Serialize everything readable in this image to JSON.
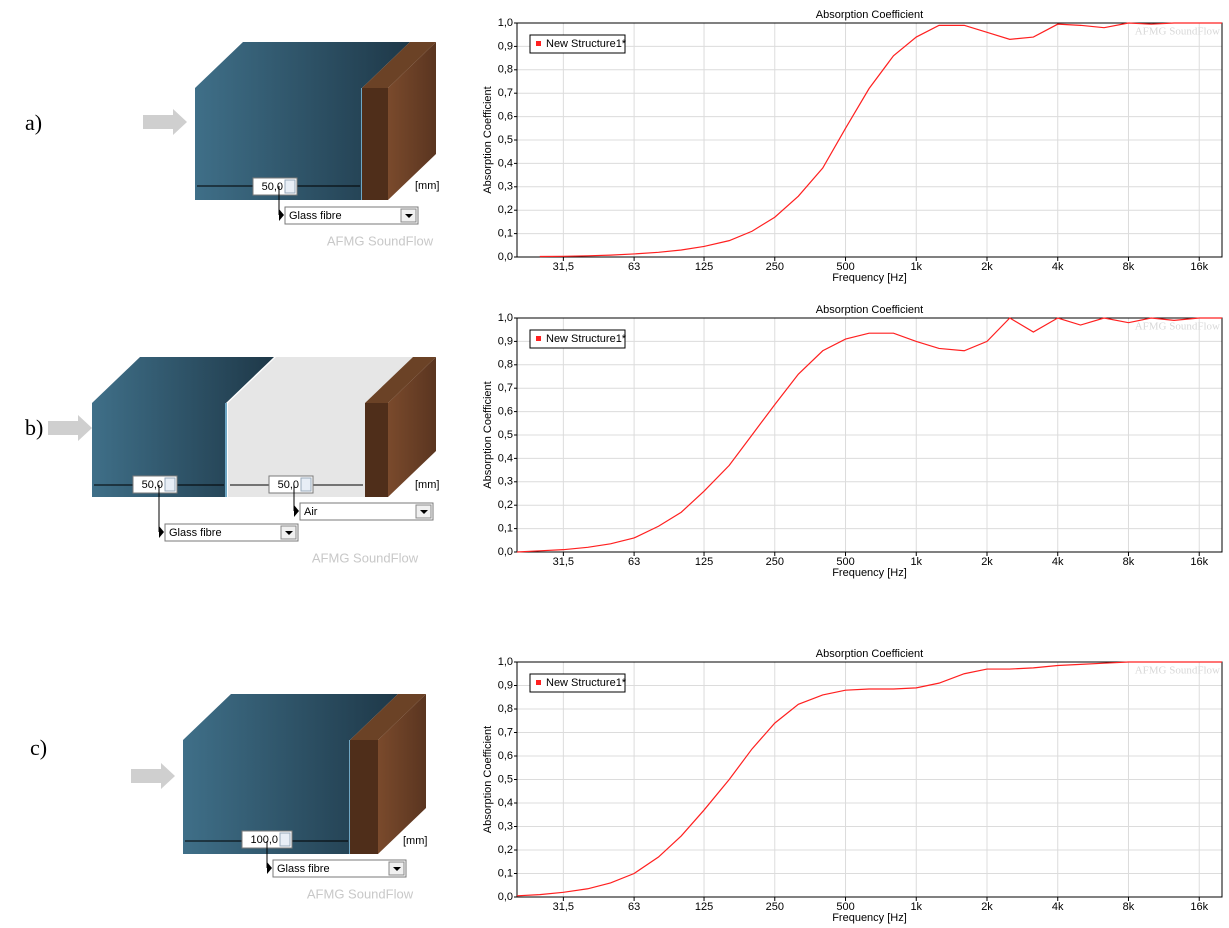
{
  "panels": [
    {
      "label": "a)",
      "inputs": [
        "50,0"
      ],
      "materials": [
        "Glass fibre"
      ],
      "unit": "[mm]",
      "watermark": "AFMG SoundFlow"
    },
    {
      "label": "b)",
      "inputs": [
        "50,0",
        "50,0"
      ],
      "materials": [
        "Glass fibre",
        "Air"
      ],
      "unit": "[mm]",
      "watermark": "AFMG SoundFlow"
    },
    {
      "label": "c)",
      "inputs": [
        "100,0"
      ],
      "materials": [
        "Glass fibre"
      ],
      "unit": "[mm]",
      "watermark": "AFMG SoundFlow"
    }
  ],
  "chart_data": [
    {
      "type": "line",
      "title": "Absorption Coefficient",
      "xlabel": "Frequency [Hz]",
      "ylabel": "Absorption Coefficient",
      "watermark": "AFMG SoundFlow",
      "x": [
        25,
        31.5,
        40,
        50,
        63,
        80,
        100,
        125,
        160,
        200,
        250,
        315,
        400,
        500,
        630,
        800,
        1000,
        1250,
        1600,
        2000,
        2500,
        3150,
        4000,
        5000,
        6300,
        8000,
        10000,
        12500,
        16000,
        20000
      ],
      "series": [
        {
          "name": "New Structure1*",
          "color": "#ff2020",
          "values": [
            0.002,
            0.003,
            0.005,
            0.008,
            0.013,
            0.02,
            0.03,
            0.045,
            0.07,
            0.11,
            0.17,
            0.26,
            0.38,
            0.55,
            0.72,
            0.86,
            0.94,
            0.99,
            0.99,
            0.96,
            0.93,
            0.94,
            0.995,
            0.99,
            0.98,
            1.0,
            0.995,
            1.0,
            1.0,
            1.0
          ]
        }
      ],
      "xscale": "log",
      "xlim": [
        20,
        20000
      ],
      "xticks": [
        {
          "value": 31.5,
          "label": "31,5"
        },
        63,
        125,
        250,
        500,
        {
          "value": 1000,
          "label": "1k"
        },
        {
          "value": 2000,
          "label": "2k"
        },
        {
          "value": 4000,
          "label": "4k"
        },
        {
          "value": 8000,
          "label": "8k"
        },
        {
          "value": 16000,
          "label": "16k"
        }
      ],
      "ylim": [
        0,
        1
      ],
      "yticks": [
        {
          "value": 0,
          "label": "0,0"
        },
        {
          "value": 0.1,
          "label": "0,1"
        },
        {
          "value": 0.2,
          "label": "0,2"
        },
        {
          "value": 0.3,
          "label": "0,3"
        },
        {
          "value": 0.4,
          "label": "0,4"
        },
        {
          "value": 0.5,
          "label": "0,5"
        },
        {
          "value": 0.6,
          "label": "0,6"
        },
        {
          "value": 0.7,
          "label": "0,7"
        },
        {
          "value": 0.8,
          "label": "0,8"
        },
        {
          "value": 0.9,
          "label": "0,9"
        },
        {
          "value": 1,
          "label": "1,0"
        }
      ],
      "grid": true,
      "legend": "upper left"
    },
    {
      "type": "line",
      "title": "Absorption Coefficient",
      "xlabel": "Frequency [Hz]",
      "ylabel": "Absorption Coefficient",
      "watermark": "AFMG SoundFlow",
      "x": [
        20,
        25,
        31.5,
        40,
        50,
        63,
        80,
        100,
        125,
        160,
        200,
        250,
        315,
        400,
        500,
        630,
        800,
        1000,
        1250,
        1600,
        2000,
        2500,
        3150,
        4000,
        5000,
        6300,
        8000,
        10000,
        12500,
        16000,
        20000
      ],
      "series": [
        {
          "name": "New Structure1*",
          "color": "#ff2020",
          "values": [
            0.0,
            0.005,
            0.01,
            0.02,
            0.035,
            0.06,
            0.11,
            0.17,
            0.26,
            0.37,
            0.5,
            0.63,
            0.76,
            0.86,
            0.91,
            0.935,
            0.935,
            0.9,
            0.87,
            0.86,
            0.9,
            1.0,
            0.94,
            1.0,
            0.97,
            1.0,
            0.98,
            1.0,
            0.99,
            1.0,
            1.0
          ]
        }
      ],
      "xscale": "log",
      "xlim": [
        20,
        20000
      ],
      "xticks": [
        {
          "value": 31.5,
          "label": "31,5"
        },
        63,
        125,
        250,
        500,
        {
          "value": 1000,
          "label": "1k"
        },
        {
          "value": 2000,
          "label": "2k"
        },
        {
          "value": 4000,
          "label": "4k"
        },
        {
          "value": 8000,
          "label": "8k"
        },
        {
          "value": 16000,
          "label": "16k"
        }
      ],
      "ylim": [
        0,
        1
      ],
      "yticks": [
        {
          "value": 0,
          "label": "0,0"
        },
        {
          "value": 0.1,
          "label": "0,1"
        },
        {
          "value": 0.2,
          "label": "0,2"
        },
        {
          "value": 0.3,
          "label": "0,3"
        },
        {
          "value": 0.4,
          "label": "0,4"
        },
        {
          "value": 0.5,
          "label": "0,5"
        },
        {
          "value": 0.6,
          "label": "0,6"
        },
        {
          "value": 0.7,
          "label": "0,7"
        },
        {
          "value": 0.8,
          "label": "0,8"
        },
        {
          "value": 0.9,
          "label": "0,9"
        },
        {
          "value": 1,
          "label": "1,0"
        }
      ],
      "grid": true,
      "legend": "upper left"
    },
    {
      "type": "line",
      "title": "Absorption Coefficient",
      "xlabel": "Frequency [Hz]",
      "ylabel": "Absorption Coefficient",
      "watermark": "AFMG SoundFlow",
      "x": [
        20,
        25,
        31.5,
        40,
        50,
        63,
        80,
        100,
        125,
        160,
        200,
        250,
        315,
        400,
        500,
        630,
        800,
        1000,
        1250,
        1600,
        2000,
        2500,
        3150,
        4000,
        5000,
        6300,
        8000,
        10000,
        12500,
        16000,
        20000
      ],
      "series": [
        {
          "name": "New Structure1*",
          "color": "#ff2020",
          "values": [
            0.005,
            0.01,
            0.02,
            0.035,
            0.06,
            0.1,
            0.17,
            0.26,
            0.37,
            0.5,
            0.63,
            0.74,
            0.82,
            0.86,
            0.88,
            0.885,
            0.885,
            0.89,
            0.91,
            0.95,
            0.97,
            0.97,
            0.975,
            0.985,
            0.99,
            0.995,
            1.0,
            1.0,
            1.0,
            1.0,
            1.0
          ]
        }
      ],
      "xscale": "log",
      "xlim": [
        20,
        20000
      ],
      "xticks": [
        {
          "value": 31.5,
          "label": "31,5"
        },
        63,
        125,
        250,
        500,
        {
          "value": 1000,
          "label": "1k"
        },
        {
          "value": 2000,
          "label": "2k"
        },
        {
          "value": 4000,
          "label": "4k"
        },
        {
          "value": 8000,
          "label": "8k"
        },
        {
          "value": 16000,
          "label": "16k"
        }
      ],
      "ylim": [
        0,
        1
      ],
      "yticks": [
        {
          "value": 0,
          "label": "0,0"
        },
        {
          "value": 0.1,
          "label": "0,1"
        },
        {
          "value": 0.2,
          "label": "0,2"
        },
        {
          "value": 0.3,
          "label": "0,3"
        },
        {
          "value": 0.4,
          "label": "0,4"
        },
        {
          "value": 0.5,
          "label": "0,5"
        },
        {
          "value": 0.6,
          "label": "0,6"
        },
        {
          "value": 0.7,
          "label": "0,7"
        },
        {
          "value": 0.8,
          "label": "0,8"
        },
        {
          "value": 0.9,
          "label": "0,9"
        },
        {
          "value": 1,
          "label": "1,0"
        }
      ],
      "grid": true,
      "legend": "upper left"
    }
  ]
}
